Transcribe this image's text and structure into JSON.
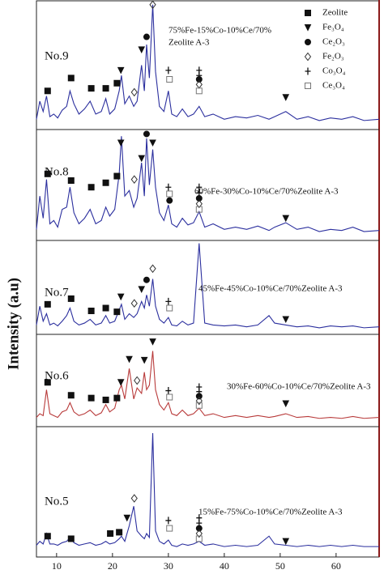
{
  "chart_data": {
    "type": "line",
    "ylabel": "Intensity (a.u)",
    "xlim": [
      6.4,
      67.7
    ],
    "xticks": [
      10,
      20,
      30,
      40,
      50,
      60
    ],
    "ylim": [
      0,
      100
    ],
    "legend": [
      {
        "name": "Zeolite",
        "symbol": "square"
      },
      {
        "name": "Fe₃O₄",
        "symbol": "triangle-down"
      },
      {
        "name": "Ce₂O₃",
        "symbol": "circle"
      },
      {
        "name": "Fe₂O₃",
        "symbol": "diamond"
      },
      {
        "name": "Co₃O₄",
        "symbol": "plus"
      },
      {
        "name": "Ce₃O₄",
        "symbol": "open-square"
      }
    ],
    "x": [
      6.4,
      7,
      7.6,
      8.2,
      8.8,
      9.5,
      10.2,
      11,
      11.8,
      12.4,
      13.1,
      14,
      15,
      16,
      17,
      18,
      18.8,
      19.5,
      20.4,
      21.2,
      21.6,
      22.2,
      23,
      23.8,
      24.4,
      25.2,
      25.7,
      26.1,
      26.6,
      27.2,
      27.7,
      28.4,
      29.2,
      30,
      30.6,
      31.5,
      32.5,
      33.5,
      34.5,
      35.5,
      36.5,
      38,
      40,
      42,
      44,
      46,
      48,
      49,
      51,
      53,
      55,
      57,
      59,
      61,
      63,
      65,
      67.7
    ],
    "series": [
      {
        "name": "No.9",
        "color": "#2b2f9e",
        "label": [
          "75%Fe-15%Co-10%Ce/70%",
          "Zeolite A-3"
        ],
        "values": [
          8,
          22,
          14,
          26,
          10,
          12,
          9,
          15,
          18,
          30,
          20,
          12,
          16,
          22,
          12,
          14,
          24,
          12,
          16,
          30,
          42,
          20,
          26,
          18,
          22,
          50,
          30,
          66,
          40,
          97,
          45,
          18,
          14,
          30,
          12,
          10,
          16,
          10,
          12,
          18,
          10,
          12,
          8,
          10,
          9,
          11,
          8,
          10,
          14,
          8,
          10,
          7,
          9,
          8,
          10,
          7,
          8
        ],
        "markers": [
          {
            "x": 8.4,
            "y": 30,
            "s": 0
          },
          {
            "x": 12.6,
            "y": 40,
            "s": 0
          },
          {
            "x": 16.2,
            "y": 32,
            "s": 0
          },
          {
            "x": 18.8,
            "y": 32,
            "s": 0
          },
          {
            "x": 20.8,
            "y": 36,
            "s": 0
          },
          {
            "x": 21.5,
            "y": 46,
            "s": 1
          },
          {
            "x": 23.9,
            "y": 29,
            "s": 3
          },
          {
            "x": 25.2,
            "y": 62,
            "s": 1
          },
          {
            "x": 26.1,
            "y": 72,
            "s": 2
          },
          {
            "x": 27.2,
            "y": 97,
            "s": 3
          },
          {
            "x": 30,
            "y": 46,
            "s": 4
          },
          {
            "x": 30.2,
            "y": 39,
            "s": 5
          },
          {
            "x": 35.5,
            "y": 46,
            "s": 4
          },
          {
            "x": 35.5,
            "y": 42,
            "s": 4
          },
          {
            "x": 35.5,
            "y": 39,
            "s": 2
          },
          {
            "x": 35.5,
            "y": 35,
            "s": 3
          },
          {
            "x": 35.5,
            "y": 30,
            "s": 5
          },
          {
            "x": 51,
            "y": 25,
            "s": 1
          }
        ]
      },
      {
        "name": "No.8",
        "color": "#2b2f9e",
        "label": [
          "60%Fe-30%Co-10%Ce/70%Zeolite A-3"
        ],
        "values": [
          10,
          40,
          20,
          55,
          15,
          18,
          12,
          28,
          30,
          48,
          25,
          15,
          20,
          28,
          15,
          18,
          30,
          22,
          28,
          60,
          94,
          40,
          45,
          30,
          38,
          70,
          40,
          92,
          50,
          82,
          48,
          25,
          18,
          32,
          15,
          12,
          20,
          14,
          16,
          26,
          12,
          15,
          10,
          12,
          10,
          13,
          9,
          12,
          16,
          10,
          12,
          8,
          10,
          9,
          12,
          8,
          9
        ],
        "markers": [
          {
            "x": 8.4,
            "y": 60,
            "s": 0
          },
          {
            "x": 12.6,
            "y": 54,
            "s": 0
          },
          {
            "x": 16.2,
            "y": 48,
            "s": 0
          },
          {
            "x": 18.8,
            "y": 52,
            "s": 0
          },
          {
            "x": 20.8,
            "y": 58,
            "s": 0
          },
          {
            "x": 21.5,
            "y": 88,
            "s": 1
          },
          {
            "x": 23.9,
            "y": 55,
            "s": 3
          },
          {
            "x": 25.2,
            "y": 74,
            "s": 1
          },
          {
            "x": 26.1,
            "y": 96,
            "s": 2
          },
          {
            "x": 27.2,
            "y": 88,
            "s": 1
          },
          {
            "x": 30,
            "y": 48,
            "s": 4
          },
          {
            "x": 30.2,
            "y": 42,
            "s": 5
          },
          {
            "x": 30.2,
            "y": 36,
            "s": 2
          },
          {
            "x": 35.5,
            "y": 48,
            "s": 4
          },
          {
            "x": 35.5,
            "y": 43,
            "s": 4
          },
          {
            "x": 35.5,
            "y": 38,
            "s": 2
          },
          {
            "x": 35.5,
            "y": 33,
            "s": 3
          },
          {
            "x": 35.5,
            "y": 28,
            "s": 5
          },
          {
            "x": 51,
            "y": 20,
            "s": 1
          }
        ]
      },
      {
        "name": "No.7",
        "color": "#2b2f9e",
        "label": [
          "45%Fe-45%Co-10%Ce/70%Zeolite A-3"
        ],
        "values": [
          10,
          30,
          14,
          22,
          10,
          12,
          9,
          14,
          20,
          28,
          14,
          10,
          12,
          16,
          10,
          12,
          20,
          12,
          14,
          26,
          32,
          16,
          22,
          18,
          22,
          35,
          28,
          42,
          30,
          59,
          30,
          16,
          12,
          18,
          10,
          9,
          14,
          10,
          12,
          97,
          12,
          10,
          9,
          10,
          8,
          10,
          20,
          12,
          10,
          8,
          9,
          7,
          9,
          8,
          9,
          7,
          8
        ],
        "markers": [
          {
            "x": 8.4,
            "y": 32,
            "s": 0
          },
          {
            "x": 12.6,
            "y": 38,
            "s": 0
          },
          {
            "x": 16.2,
            "y": 25,
            "s": 0
          },
          {
            "x": 18.8,
            "y": 28,
            "s": 0
          },
          {
            "x": 20.8,
            "y": 24,
            "s": 0
          },
          {
            "x": 21.5,
            "y": 40,
            "s": 1
          },
          {
            "x": 23.9,
            "y": 33,
            "s": 3
          },
          {
            "x": 25.2,
            "y": 48,
            "s": 1
          },
          {
            "x": 26.1,
            "y": 58,
            "s": 2
          },
          {
            "x": 27.2,
            "y": 70,
            "s": 3
          },
          {
            "x": 30,
            "y": 35,
            "s": 4
          },
          {
            "x": 30.2,
            "y": 28,
            "s": 5
          },
          {
            "x": 51,
            "y": 16,
            "s": 1
          }
        ]
      },
      {
        "name": "No.6",
        "color": "#b83a3a",
        "label": [
          "30%Fe-60%Co-10%Ce/70%Zeolite A-3"
        ],
        "values": [
          10,
          14,
          12,
          40,
          14,
          12,
          10,
          16,
          18,
          26,
          16,
          12,
          14,
          18,
          12,
          15,
          24,
          16,
          20,
          40,
          45,
          30,
          63,
          30,
          42,
          36,
          59,
          40,
          45,
          82,
          40,
          24,
          18,
          26,
          14,
          12,
          18,
          12,
          14,
          20,
          12,
          14,
          10,
          12,
          10,
          12,
          10,
          11,
          14,
          10,
          11,
          9,
          10,
          9,
          11,
          9,
          10
        ],
        "markers": [
          {
            "x": 8.4,
            "y": 48,
            "s": 0
          },
          {
            "x": 12.6,
            "y": 34,
            "s": 0
          },
          {
            "x": 16.2,
            "y": 31,
            "s": 0
          },
          {
            "x": 18.8,
            "y": 29,
            "s": 0
          },
          {
            "x": 20.8,
            "y": 31,
            "s": 0
          },
          {
            "x": 21.5,
            "y": 48,
            "s": 1
          },
          {
            "x": 23,
            "y": 73,
            "s": 1
          },
          {
            "x": 24.4,
            "y": 50,
            "s": 3
          },
          {
            "x": 25.7,
            "y": 72,
            "s": 1
          },
          {
            "x": 27.2,
            "y": 92,
            "s": 1
          },
          {
            "x": 30,
            "y": 39,
            "s": 4
          },
          {
            "x": 30.2,
            "y": 32,
            "s": 5
          },
          {
            "x": 35.5,
            "y": 43,
            "s": 4
          },
          {
            "x": 35.5,
            "y": 38,
            "s": 4
          },
          {
            "x": 35.5,
            "y": 33,
            "s": 2
          },
          {
            "x": 35.5,
            "y": 28,
            "s": 3
          },
          {
            "x": 35.5,
            "y": 23,
            "s": 5
          },
          {
            "x": 51,
            "y": 25,
            "s": 1
          }
        ]
      },
      {
        "name": "No.5",
        "color": "#2b2f9e",
        "label": [
          "15%Fe-75%Co-10%Ce/70%Zeolite A-3"
        ],
        "values": [
          9,
          12,
          10,
          18,
          10,
          10,
          9,
          11,
          12,
          15,
          11,
          9,
          10,
          11,
          9,
          10,
          12,
          10,
          11,
          14,
          16,
          12,
          24,
          39,
          20,
          16,
          14,
          18,
          15,
          95,
          20,
          12,
          10,
          13,
          9,
          8,
          10,
          9,
          10,
          12,
          9,
          10,
          8,
          9,
          8,
          9,
          16,
          10,
          9,
          8,
          9,
          8,
          9,
          8,
          9,
          8,
          8
        ],
        "markers": [
          {
            "x": 8.4,
            "y": 16,
            "s": 0
          },
          {
            "x": 12.6,
            "y": 14,
            "s": 0
          },
          {
            "x": 19.6,
            "y": 18,
            "s": 0
          },
          {
            "x": 21.2,
            "y": 19,
            "s": 0
          },
          {
            "x": 22.6,
            "y": 30,
            "s": 1
          },
          {
            "x": 23.9,
            "y": 45,
            "s": 3
          },
          {
            "x": 30,
            "y": 28,
            "s": 4
          },
          {
            "x": 30.2,
            "y": 22,
            "s": 5
          },
          {
            "x": 35.5,
            "y": 30,
            "s": 4
          },
          {
            "x": 35.5,
            "y": 26,
            "s": 4
          },
          {
            "x": 35.5,
            "y": 22,
            "s": 2
          },
          {
            "x": 35.5,
            "y": 18,
            "s": 3
          },
          {
            "x": 35.5,
            "y": 14,
            "s": 5
          },
          {
            "x": 51,
            "y": 12,
            "s": 1
          }
        ]
      }
    ]
  }
}
